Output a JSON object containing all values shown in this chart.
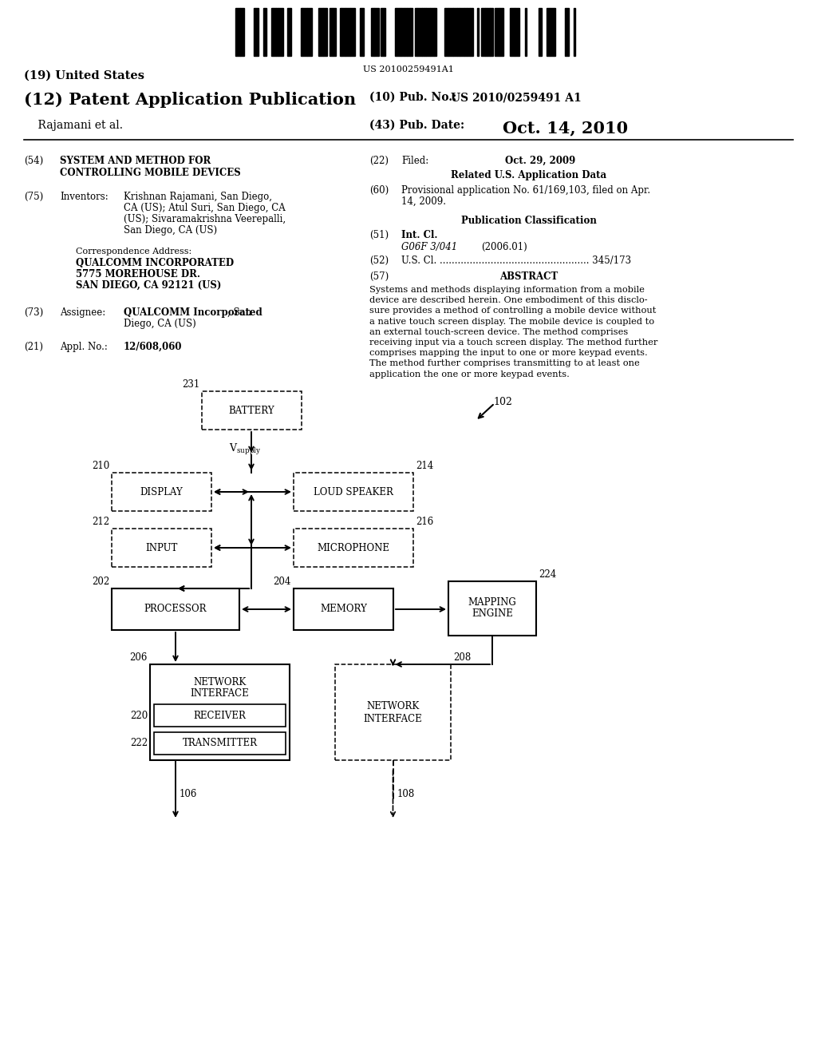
{
  "bg_color": "#ffffff",
  "barcode_text": "US 20100259491A1",
  "title_19": "(19) United States",
  "title_12": "(12) Patent Application Publication",
  "pub_no_label": "(10) Pub. No.:",
  "pub_no": "US 2010/0259491 A1",
  "inventors_label": "    Rajamani et al.",
  "pub_date_label": "(43) Pub. Date:",
  "pub_date": "Oct. 14, 2010",
  "field54_label": "(54)",
  "field54_title1": "SYSTEM AND METHOD FOR",
  "field54_title2": "CONTROLLING MOBILE DEVICES",
  "field22_label": "(22)",
  "field22_text": "Filed:",
  "field22_date": "Oct. 29, 2009",
  "related_title": "Related U.S. Application Data",
  "field75_label": "(75)",
  "field75_title": "Inventors:",
  "field75_text1": "Krishnan Rajamani, San Diego,",
  "field75_text2": "CA (US); Atul Suri, San Diego, CA",
  "field75_text3": "(US); Sivaramakrishna Veerepalli,",
  "field75_text4": "San Diego, CA (US)",
  "field60_label": "(60)",
  "field60_line1": "Provisional application No. 61/169,103, filed on Apr.",
  "field60_line2": "14, 2009.",
  "pub_class_title": "Publication Classification",
  "corr_label": "Correspondence Address:",
  "corr1": "QUALCOMM INCORPORATED",
  "corr2": "5775 MOREHOUSE DR.",
  "corr3": "SAN DIEGO, CA 92121 (US)",
  "field51_label": "(51)",
  "field51_title": "Int. Cl.",
  "field51_class": "G06F 3/041",
  "field51_year": "(2006.01)",
  "field52_label": "(52)",
  "field52_text": "U.S. Cl. .................................................. 345/173",
  "field57_label": "(57)",
  "field57_title": "ABSTRACT",
  "abstract_lines": [
    "Systems and methods displaying information from a mobile",
    "device are described herein. One embodiment of this disclo-",
    "sure provides a method of controlling a mobile device without",
    "a native touch screen display. The mobile device is coupled to",
    "an external touch-screen device. The method comprises",
    "receiving input via a touch screen display. The method further",
    "comprises mapping the input to one or more keypad events.",
    "The method further comprises transmitting to at least one",
    "application the one or more keypad events."
  ],
  "field73_label": "(73)",
  "field73_title": "Assignee:",
  "field73_bold": "QUALCOMM Incorporated",
  "field73_text2": ", San",
  "field73_text3": "Diego, CA (US)",
  "field21_label": "(21)",
  "field21_title": "Appl. No.:",
  "field21_num": "12/608,060",
  "diagram_ref": "102",
  "battery_label": "BATTERY",
  "battery_ref": "231",
  "display_label": "DISPLAY",
  "display_ref": "210",
  "loud_speaker_label": "LOUD SPEAKER",
  "loud_speaker_ref": "214",
  "input_label": "INPUT",
  "input_ref": "212",
  "microphone_label": "MICROPHONE",
  "microphone_ref": "216",
  "processor_label": "PROCESSOR",
  "processor_ref": "202",
  "memory_label": "MEMORY",
  "memory_ref": "204",
  "mapping_engine_label1": "MAPPING",
  "mapping_engine_label2": "ENGINE",
  "mapping_engine_ref": "224",
  "net_if1_label1": "NETWORK",
  "net_if1_label2": "INTERFACE",
  "net_if1_ref": "206",
  "receiver_label": "RECEIVER",
  "receiver_ref": "220",
  "transmitter_label": "TRANSMITTER",
  "transmitter_ref": "222",
  "net_if2_label1": "NETWORK",
  "net_if2_label2": "INTERFACE",
  "net_if2_ref": "208",
  "ref106": "106",
  "ref108": "108"
}
